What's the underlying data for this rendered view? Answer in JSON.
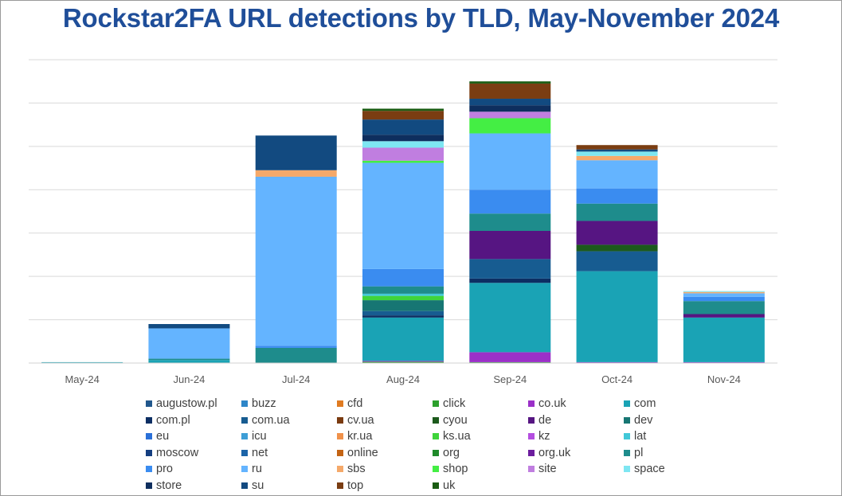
{
  "chart_data": {
    "type": "bar",
    "stacked": true,
    "title": "Rockstar2FA URL detections by TLD, May-November 2024",
    "xlabel": "",
    "ylabel": "",
    "ylim": [
      0,
      700
    ],
    "grid": true,
    "legend_position": "bottom",
    "categories": [
      "May-24",
      "Jun-24",
      "Jul-24",
      "Aug-24",
      "Sep-24",
      "Oct-24",
      "Nov-24"
    ],
    "series": [
      {
        "name": "augustow.pl",
        "color": "#21578c",
        "values": [
          0,
          0,
          0,
          0,
          0,
          0,
          0
        ]
      },
      {
        "name": "buzz",
        "color": "#2e86c8",
        "values": [
          0,
          0,
          0,
          0,
          0,
          0,
          0
        ]
      },
      {
        "name": "cfd",
        "color": "#e07b21",
        "values": [
          0,
          0,
          0,
          0,
          0,
          0,
          0
        ]
      },
      {
        "name": "click",
        "color": "#2ca02c",
        "values": [
          0,
          0,
          0,
          3,
          2,
          0,
          0
        ]
      },
      {
        "name": "co.uk",
        "color": "#9b30c8",
        "values": [
          0,
          0,
          0,
          2,
          23,
          2,
          2
        ]
      },
      {
        "name": "com",
        "color": "#1aa3b5",
        "values": [
          2,
          7,
          0,
          100,
          160,
          210,
          103
        ]
      },
      {
        "name": "com.pl",
        "color": "#0c2e63",
        "values": [
          0,
          0,
          0,
          5,
          10,
          0,
          0
        ]
      },
      {
        "name": "com.ua",
        "color": "#175c91",
        "values": [
          0,
          0,
          0,
          10,
          45,
          46,
          0
        ]
      },
      {
        "name": "cv.ua",
        "color": "#7a3b10",
        "values": [
          0,
          0,
          0,
          0,
          0,
          0,
          0
        ]
      },
      {
        "name": "cyou",
        "color": "#1c5a1c",
        "values": [
          0,
          0,
          0,
          0,
          0,
          15,
          0
        ]
      },
      {
        "name": "de",
        "color": "#561582",
        "values": [
          0,
          0,
          0,
          0,
          65,
          55,
          8
        ]
      },
      {
        "name": "dev",
        "color": "#177673",
        "values": [
          0,
          0,
          0,
          25,
          0,
          0,
          0
        ]
      },
      {
        "name": "eu",
        "color": "#2a70d8",
        "values": [
          0,
          0,
          0,
          0,
          0,
          0,
          0
        ]
      },
      {
        "name": "icu",
        "color": "#3d9ed6",
        "values": [
          0,
          0,
          0,
          0,
          0,
          0,
          0
        ]
      },
      {
        "name": "kr.ua",
        "color": "#f0914a",
        "values": [
          0,
          0,
          0,
          0,
          0,
          0,
          0
        ]
      },
      {
        "name": "ks.ua",
        "color": "#3fd43b",
        "values": [
          0,
          0,
          0,
          10,
          0,
          0,
          0
        ]
      },
      {
        "name": "kz",
        "color": "#b44ee0",
        "values": [
          0,
          0,
          0,
          0,
          0,
          0,
          0
        ]
      },
      {
        "name": "lat",
        "color": "#42c8d8",
        "values": [
          0,
          0,
          0,
          5,
          0,
          0,
          0
        ]
      },
      {
        "name": "moscow",
        "color": "#143e80",
        "values": [
          0,
          0,
          0,
          0,
          0,
          0,
          0
        ]
      },
      {
        "name": "net",
        "color": "#1c64a8",
        "values": [
          0,
          0,
          0,
          0,
          0,
          0,
          0
        ]
      },
      {
        "name": "online",
        "color": "#c46414",
        "values": [
          0,
          0,
          0,
          0,
          0,
          0,
          0
        ]
      },
      {
        "name": "org",
        "color": "#1f8a2a",
        "values": [
          0,
          0,
          0,
          0,
          0,
          0,
          0
        ]
      },
      {
        "name": "org.uk",
        "color": "#6c1d9e",
        "values": [
          0,
          0,
          0,
          0,
          0,
          0,
          0
        ]
      },
      {
        "name": "pl",
        "color": "#1e8c8c",
        "values": [
          0,
          3,
          35,
          17,
          40,
          40,
          30
        ]
      },
      {
        "name": "pro",
        "color": "#3a8cf0",
        "values": [
          0,
          0,
          5,
          40,
          55,
          35,
          10
        ]
      },
      {
        "name": "ru",
        "color": "#64b4ff",
        "values": [
          0,
          70,
          390,
          245,
          130,
          65,
          8
        ]
      },
      {
        "name": "sbs",
        "color": "#f5a96a",
        "values": [
          0,
          0,
          15,
          0,
          0,
          10,
          3
        ]
      },
      {
        "name": "shop",
        "color": "#44ee44",
        "values": [
          0,
          0,
          0,
          5,
          35,
          0,
          0
        ]
      },
      {
        "name": "site",
        "color": "#c07ee0",
        "values": [
          0,
          0,
          0,
          30,
          15,
          0,
          0
        ]
      },
      {
        "name": "space",
        "color": "#7ee6f2",
        "values": [
          0,
          0,
          0,
          15,
          0,
          10,
          2
        ]
      },
      {
        "name": "store",
        "color": "#0e2e5e",
        "values": [
          0,
          0,
          0,
          15,
          15,
          0,
          0
        ]
      },
      {
        "name": "su",
        "color": "#124a80",
        "values": [
          0,
          10,
          80,
          35,
          15,
          5,
          0
        ]
      },
      {
        "name": "top",
        "color": "#7a3d12",
        "values": [
          0,
          0,
          0,
          20,
          35,
          10,
          0
        ]
      },
      {
        "name": "uk",
        "color": "#1a5c12",
        "values": [
          0,
          0,
          0,
          5,
          5,
          0,
          0
        ]
      }
    ]
  }
}
